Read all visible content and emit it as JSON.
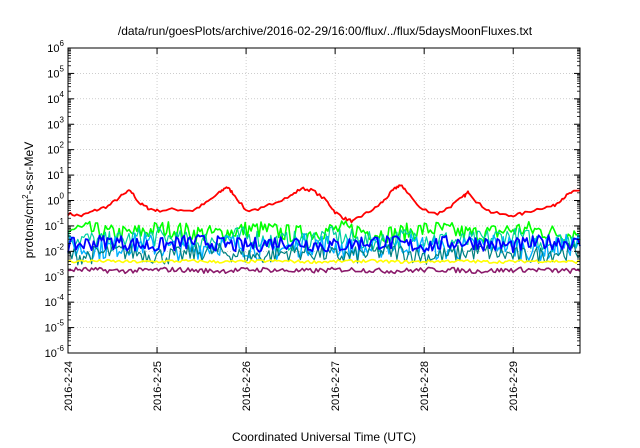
{
  "chart_data": {
    "type": "line",
    "title": "/data/run/goesPlots/archive/2016-02-29/16:00/flux/../flux/5daysMoonFluxes.txt",
    "xlabel": "Coordinated Universal Time (UTC)",
    "ylabel": {
      "pre": "protons/cm",
      "sup": "2",
      "post": "-s-sr-MeV"
    },
    "y_scale": "log",
    "ylim": [
      1e-06,
      1000000.0
    ],
    "xlim": [
      0,
      5.75
    ],
    "grid": true,
    "legend": "none",
    "y_ticks": [
      {
        "exp": -6,
        "base": "10",
        "sup": "-6"
      },
      {
        "exp": -5,
        "base": "10",
        "sup": "-5"
      },
      {
        "exp": -4,
        "base": "10",
        "sup": "-4"
      },
      {
        "exp": -3,
        "base": "10",
        "sup": "-3"
      },
      {
        "exp": -2,
        "base": "10",
        "sup": "-2"
      },
      {
        "exp": -1,
        "base": "10",
        "sup": "-1"
      },
      {
        "exp": 0,
        "base": "10",
        "sup": "0"
      },
      {
        "exp": 1,
        "base": "10",
        "sup": "1"
      },
      {
        "exp": 2,
        "base": "10",
        "sup": "2"
      },
      {
        "exp": 3,
        "base": "10",
        "sup": "3"
      },
      {
        "exp": 4,
        "base": "10",
        "sup": "4"
      },
      {
        "exp": 5,
        "base": "10",
        "sup": "5"
      },
      {
        "exp": 6,
        "base": "10",
        "sup": "6"
      }
    ],
    "x_ticks": [
      {
        "day": 0,
        "label": "2016-2-24"
      },
      {
        "day": 1,
        "label": "2016-2-25"
      },
      {
        "day": 2,
        "label": "2016-2-26"
      },
      {
        "day": 3,
        "label": "2016-2-27"
      },
      {
        "day": 4,
        "label": "2016-2-28"
      },
      {
        "day": 5,
        "label": "2016-2-29"
      }
    ],
    "x_unit": "days since 2016-2-24 00:00 UTC",
    "series": [
      {
        "color": "#ff0000",
        "width": 1.8,
        "points": [
          [
            0,
            0.3
          ],
          [
            0.15,
            0.25
          ],
          [
            0.3,
            0.4
          ],
          [
            0.45,
            0.6
          ],
          [
            0.6,
            1.5
          ],
          [
            0.7,
            2.5
          ],
          [
            0.8,
            0.8
          ],
          [
            0.9,
            0.5
          ],
          [
            1.0,
            0.4
          ],
          [
            1.2,
            0.45
          ],
          [
            1.4,
            0.4
          ],
          [
            1.55,
            0.8
          ],
          [
            1.7,
            2.0
          ],
          [
            1.78,
            3.5
          ],
          [
            1.85,
            2.0
          ],
          [
            2.0,
            0.4
          ],
          [
            2.2,
            0.5
          ],
          [
            2.3,
            0.8
          ],
          [
            2.5,
            1.5
          ],
          [
            2.62,
            3.0
          ],
          [
            2.75,
            2.5
          ],
          [
            2.9,
            1.0
          ],
          [
            3.0,
            0.35
          ],
          [
            3.1,
            0.2
          ],
          [
            3.2,
            0.15
          ],
          [
            3.3,
            0.25
          ],
          [
            3.45,
            0.5
          ],
          [
            3.55,
            1.0
          ],
          [
            3.65,
            2.5
          ],
          [
            3.72,
            4.0
          ],
          [
            3.78,
            3.0
          ],
          [
            3.95,
            0.5
          ],
          [
            4.15,
            0.3
          ],
          [
            4.3,
            0.6
          ],
          [
            4.45,
            1.5
          ],
          [
            4.5,
            2.2
          ],
          [
            4.6,
            0.8
          ],
          [
            4.75,
            0.35
          ],
          [
            4.95,
            0.25
          ],
          [
            5.1,
            0.3
          ],
          [
            5.3,
            0.5
          ],
          [
            5.45,
            0.6
          ],
          [
            5.55,
            1.2
          ],
          [
            5.65,
            2.0
          ],
          [
            5.75,
            2.5
          ]
        ]
      },
      {
        "color": "#00ff00",
        "width": 1.6,
        "center": 0.06,
        "spread": 0.35
      },
      {
        "color": "#00d0a0",
        "width": 1.2,
        "center": 0.03,
        "spread": 0.4
      },
      {
        "color": "#00b0ff",
        "width": 1.4,
        "center": 0.015,
        "spread": 0.45
      },
      {
        "color": "#008080",
        "width": 1.2,
        "center": 0.008,
        "spread": 0.35
      },
      {
        "color": "#0000ff",
        "width": 1.8,
        "center": 0.02,
        "spread": 0.3
      },
      {
        "color": "#ffff00",
        "width": 1.6,
        "center": 0.004,
        "spread": 0.06
      },
      {
        "color": "#8b1a6b",
        "width": 1.6,
        "center": 0.0018,
        "spread": 0.1
      }
    ]
  }
}
